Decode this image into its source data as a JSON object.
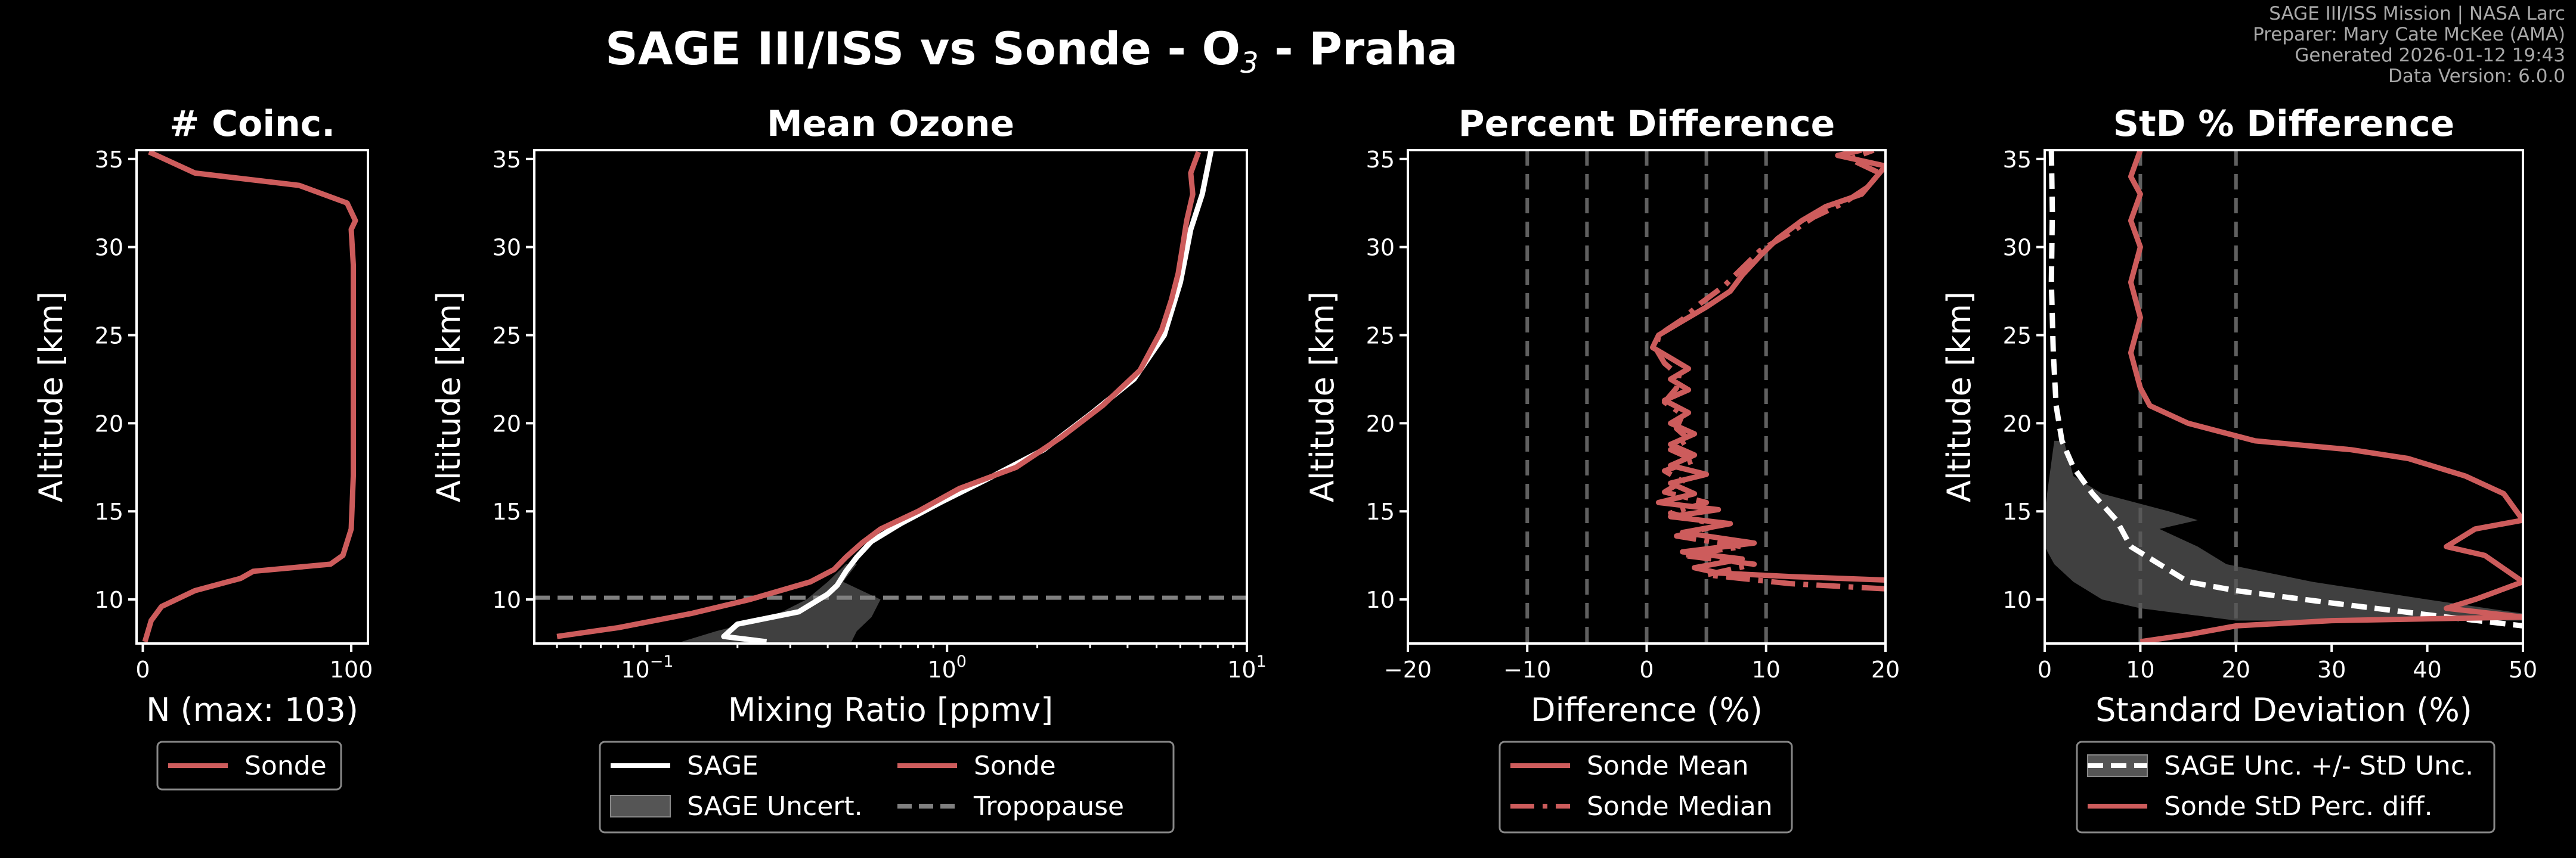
{
  "figure": {
    "title_main": "SAGE III/ISS vs Sonde - O",
    "title_sub": "3",
    "title_tail": " - Praha",
    "meta": [
      "SAGE III/ISS Mission | NASA Larc",
      "Preparer: Mary Cate McKee (AMA)",
      "Generated 2026-01-12 19:43",
      "Data Version: 6.0.0"
    ],
    "colors": {
      "background": "#000000",
      "sonde": "#cd5c5c",
      "sage": "#ffffff",
      "uncert": "#555555",
      "tropopause": "#808080",
      "axis": "#ffffff"
    }
  },
  "chart_data": [
    {
      "id": "coinc",
      "type": "line",
      "title": "# Coinc.",
      "xlabel": "N (max: 103)",
      "ylabel": "Altitude [km]",
      "xlim": [
        -3,
        108
      ],
      "ylim": [
        7.5,
        35.5
      ],
      "xticks": [
        0,
        100
      ],
      "xtick_labels": [
        "0",
        "100"
      ],
      "yticks": [
        10,
        15,
        20,
        25,
        30,
        35
      ],
      "ytick_labels": [
        "10",
        "15",
        "20",
        "25",
        "30",
        "35"
      ],
      "legend": [
        "Sonde"
      ],
      "series": [
        {
          "name": "Sonde",
          "color": "#cd5c5c",
          "style": "solid",
          "points": [
            [
              1,
              7.6
            ],
            [
              4,
              8.8
            ],
            [
              9,
              9.6
            ],
            [
              25,
              10.5
            ],
            [
              47,
              11.2
            ],
            [
              53,
              11.6
            ],
            [
              90,
              12.0
            ],
            [
              96,
              12.5
            ],
            [
              100,
              14
            ],
            [
              101,
              17
            ],
            [
              101,
              21
            ],
            [
              101,
              25
            ],
            [
              101,
              29
            ],
            [
              100,
              31
            ],
            [
              102,
              31.5
            ],
            [
              98,
              32.5
            ],
            [
              75,
              33.5
            ],
            [
              25,
              34.2
            ],
            [
              3,
              35.4
            ]
          ]
        }
      ]
    },
    {
      "id": "mean",
      "type": "line",
      "title": "Mean Ozone",
      "xlabel": "Mixing Ratio [ppmv]",
      "ylabel": "Altitude [km]",
      "xscale": "log",
      "xlim": [
        0.042,
        10
      ],
      "ylim": [
        7.5,
        35.5
      ],
      "xticks": [
        0.1,
        1,
        10
      ],
      "xtick_labels": [
        "10",
        "10",
        "10"
      ],
      "xtick_exponents": [
        "−1",
        "0",
        "1"
      ],
      "yticks": [
        10,
        15,
        20,
        25,
        30,
        35
      ],
      "ytick_labels": [
        "10",
        "15",
        "20",
        "25",
        "30",
        "35"
      ],
      "legend": [
        "SAGE",
        "SAGE Uncert.",
        "Sonde",
        "Tropopause"
      ],
      "tropopause_km": 10.1,
      "uncert_band": {
        "lower": [
          [
            0.13,
            7.6
          ],
          [
            0.17,
            8.2
          ],
          [
            0.26,
            9
          ],
          [
            0.34,
            10
          ],
          [
            0.4,
            11
          ],
          [
            0.46,
            12
          ]
        ],
        "upper": [
          [
            0.5,
            12
          ],
          [
            0.45,
            11
          ],
          [
            0.6,
            10
          ],
          [
            0.56,
            9
          ],
          [
            0.5,
            8.2
          ],
          [
            0.48,
            7.6
          ]
        ]
      },
      "series": [
        {
          "name": "SAGE",
          "color": "#ffffff",
          "style": "solid",
          "points": [
            [
              0.25,
              7.6
            ],
            [
              0.18,
              7.9
            ],
            [
              0.2,
              8.6
            ],
            [
              0.32,
              9.3
            ],
            [
              0.4,
              10.3
            ],
            [
              0.43,
              10.8
            ],
            [
              0.46,
              11.6
            ],
            [
              0.5,
              12.4
            ],
            [
              0.56,
              13.3
            ],
            [
              0.7,
              14.3
            ],
            [
              0.95,
              15.5
            ],
            [
              1.35,
              16.8
            ],
            [
              2.1,
              18.5
            ],
            [
              3.0,
              20.5
            ],
            [
              4.2,
              22.5
            ],
            [
              5.3,
              25
            ],
            [
              6.0,
              28
            ],
            [
              6.5,
              31
            ],
            [
              7.1,
              33
            ],
            [
              7.6,
              35.5
            ]
          ]
        },
        {
          "name": "Sonde",
          "color": "#cd5c5c",
          "style": "solid",
          "points": [
            [
              0.05,
              7.9
            ],
            [
              0.08,
              8.4
            ],
            [
              0.14,
              9.2
            ],
            [
              0.22,
              10
            ],
            [
              0.35,
              11
            ],
            [
              0.42,
              11.7
            ],
            [
              0.46,
              12.4
            ],
            [
              0.52,
              13.2
            ],
            [
              0.6,
              14
            ],
            [
              0.8,
              15
            ],
            [
              1.1,
              16.3
            ],
            [
              1.7,
              17.5
            ],
            [
              2.4,
              19.2
            ],
            [
              3.3,
              21
            ],
            [
              4.4,
              23
            ],
            [
              5.2,
              25.3
            ],
            [
              5.6,
              27
            ],
            [
              5.9,
              28.5
            ],
            [
              6.1,
              30
            ],
            [
              6.3,
              31.5
            ],
            [
              6.6,
              33
            ],
            [
              6.5,
              34.2
            ],
            [
              6.9,
              35.4
            ]
          ]
        }
      ]
    },
    {
      "id": "pctdiff",
      "type": "line",
      "title": "Percent Difference",
      "xlabel": "Difference (%)",
      "ylabel": "Altitude [km]",
      "xlim": [
        -20,
        20
      ],
      "ylim": [
        7.5,
        35.5
      ],
      "xticks": [
        -20,
        -10,
        0,
        10,
        20
      ],
      "xtick_labels": [
        "−20",
        "−10",
        "0",
        "10",
        "20"
      ],
      "yticks": [
        10,
        15,
        20,
        25,
        30,
        35
      ],
      "ytick_labels": [
        "10",
        "15",
        "20",
        "25",
        "30",
        "35"
      ],
      "vlines": [
        -10,
        -5,
        0,
        5,
        10
      ],
      "legend": [
        "Sonde Mean",
        "Sonde Median"
      ],
      "series": [
        {
          "name": "Sonde Mean",
          "color": "#cd5c5c",
          "style": "solid",
          "points": [
            [
              20,
              11.1
            ],
            [
              12,
              11.3
            ],
            [
              6,
              11.5
            ],
            [
              4,
              11.8
            ],
            [
              8,
              12.3
            ],
            [
              3,
              12.7
            ],
            [
              9,
              13.2
            ],
            [
              3,
              13.8
            ],
            [
              7,
              14.3
            ],
            [
              2,
              14.7
            ],
            [
              6,
              15.1
            ],
            [
              1,
              15.5
            ],
            [
              4,
              16
            ],
            [
              2,
              16.6
            ],
            [
              5,
              17.1
            ],
            [
              2,
              17.6
            ],
            [
              4,
              18.2
            ],
            [
              2,
              18.8
            ],
            [
              4,
              19.4
            ],
            [
              2,
              20
            ],
            [
              3.5,
              20.6
            ],
            [
              1.5,
              21.3
            ],
            [
              3.5,
              21.9
            ],
            [
              2,
              22.5
            ],
            [
              3.5,
              23.1
            ],
            [
              2,
              23.7
            ],
            [
              0.5,
              24.3
            ],
            [
              1,
              25
            ],
            [
              3,
              25.8
            ],
            [
              5,
              26.6
            ],
            [
              7,
              27.5
            ],
            [
              8,
              28.4
            ],
            [
              9.5,
              29.5
            ],
            [
              11,
              30.5
            ],
            [
              13,
              31.5
            ],
            [
              15,
              32.3
            ],
            [
              18,
              33
            ],
            [
              19,
              33.8
            ],
            [
              20,
              34.6
            ],
            [
              16,
              35.2
            ],
            [
              18,
              35.5
            ]
          ]
        },
        {
          "name": "Sonde Median",
          "color": "#cd5c5c",
          "style": "dashdot",
          "points": [
            [
              20,
              10.6
            ],
            [
              12,
              10.9
            ],
            [
              5,
              11.4
            ],
            [
              9,
              12
            ],
            [
              3,
              12.5
            ],
            [
              8,
              13
            ],
            [
              2.5,
              13.6
            ],
            [
              6,
              14.2
            ],
            [
              2,
              14.9
            ],
            [
              5,
              15.5
            ],
            [
              1.5,
              16.1
            ],
            [
              3,
              16.7
            ],
            [
              1.5,
              17.3
            ],
            [
              4,
              17.9
            ],
            [
              2,
              18.5
            ],
            [
              3.5,
              19.1
            ],
            [
              2.5,
              19.7
            ],
            [
              3,
              20.5
            ],
            [
              1.5,
              21.2
            ],
            [
              2.5,
              22
            ],
            [
              2.7,
              22.7
            ],
            [
              1.5,
              23.4
            ],
            [
              0.8,
              24.2
            ],
            [
              1,
              25
            ],
            [
              3,
              25.9
            ],
            [
              4.5,
              26.8
            ],
            [
              6.5,
              27.8
            ],
            [
              8,
              28.8
            ],
            [
              9.5,
              29.8
            ],
            [
              12,
              30.8
            ],
            [
              14,
              31.7
            ],
            [
              16.5,
              32.5
            ],
            [
              18.5,
              33.4
            ],
            [
              19.5,
              34.2
            ],
            [
              17,
              35
            ],
            [
              19,
              35.5
            ]
          ]
        }
      ]
    },
    {
      "id": "std",
      "type": "line",
      "title": "StD % Difference",
      "xlabel": "Standard Deviation (%)",
      "ylabel": "Altitude [km]",
      "xlim": [
        0,
        50
      ],
      "ylim": [
        7.5,
        35.5
      ],
      "xticks": [
        0,
        10,
        20,
        30,
        40,
        50
      ],
      "xtick_labels": [
        "0",
        "10",
        "20",
        "30",
        "40",
        "50"
      ],
      "yticks": [
        10,
        15,
        20,
        25,
        30,
        35
      ],
      "ytick_labels": [
        "10",
        "15",
        "20",
        "25",
        "30",
        "35"
      ],
      "vlines": [
        10,
        20
      ],
      "legend": [
        "SAGE Unc. +/- StD Unc.",
        "Sonde StD Perc. diff."
      ],
      "uncert_band": {
        "upper": [
          [
            2,
            19
          ],
          [
            3,
            17
          ],
          [
            6,
            16
          ],
          [
            13,
            15
          ],
          [
            16,
            14.5
          ],
          [
            12,
            14
          ],
          [
            16,
            13
          ],
          [
            19,
            12
          ],
          [
            28,
            11
          ],
          [
            40,
            10
          ],
          [
            50,
            9.2
          ],
          [
            50,
            8.8
          ],
          [
            20,
            8.8
          ],
          [
            10,
            9.5
          ]
        ],
        "lower": [
          [
            6,
            10
          ],
          [
            3,
            11
          ],
          [
            1,
            12
          ],
          [
            0,
            13
          ],
          [
            0,
            14.5
          ],
          [
            0,
            15
          ],
          [
            0.5,
            17
          ],
          [
            1,
            19
          ]
        ]
      },
      "series": [
        {
          "name": "SAGE Unc. +/- StD Unc.",
          "color": "#ffffff",
          "style": "dashed",
          "points": [
            [
              0.7,
              35.5
            ],
            [
              0.8,
              32
            ],
            [
              0.7,
              28
            ],
            [
              0.9,
              24
            ],
            [
              1.2,
              21
            ],
            [
              1.8,
              19
            ],
            [
              3,
              17.5
            ],
            [
              5,
              16
            ],
            [
              7.5,
              14.5
            ],
            [
              9,
              13
            ],
            [
              12,
              12
            ],
            [
              15,
              11
            ],
            [
              20,
              10.5
            ],
            [
              30,
              9.8
            ],
            [
              42,
              9
            ],
            [
              50,
              8.5
            ]
          ]
        },
        {
          "name": "Sonde StD Perc. diff.",
          "color": "#cd5c5c",
          "style": "solid",
          "points": [
            [
              10,
              35.5
            ],
            [
              9,
              34
            ],
            [
              10,
              33
            ],
            [
              9,
              31.5
            ],
            [
              10,
              30
            ],
            [
              9,
              28
            ],
            [
              10,
              26
            ],
            [
              9,
              24
            ],
            [
              10,
              22
            ],
            [
              11,
              21
            ],
            [
              15,
              20
            ],
            [
              22,
              19
            ],
            [
              32,
              18.5
            ],
            [
              38,
              18
            ],
            [
              44,
              17
            ],
            [
              48,
              16
            ],
            [
              50,
              14.5
            ],
            [
              45,
              14
            ],
            [
              42,
              13
            ],
            [
              46,
              12.5
            ],
            [
              50,
              11
            ],
            [
              45,
              10
            ],
            [
              42,
              9.5
            ],
            [
              50,
              9
            ],
            [
              30,
              8.8
            ],
            [
              20,
              8.5
            ],
            [
              15,
              8
            ],
            [
              10,
              7.6
            ]
          ]
        }
      ]
    }
  ]
}
